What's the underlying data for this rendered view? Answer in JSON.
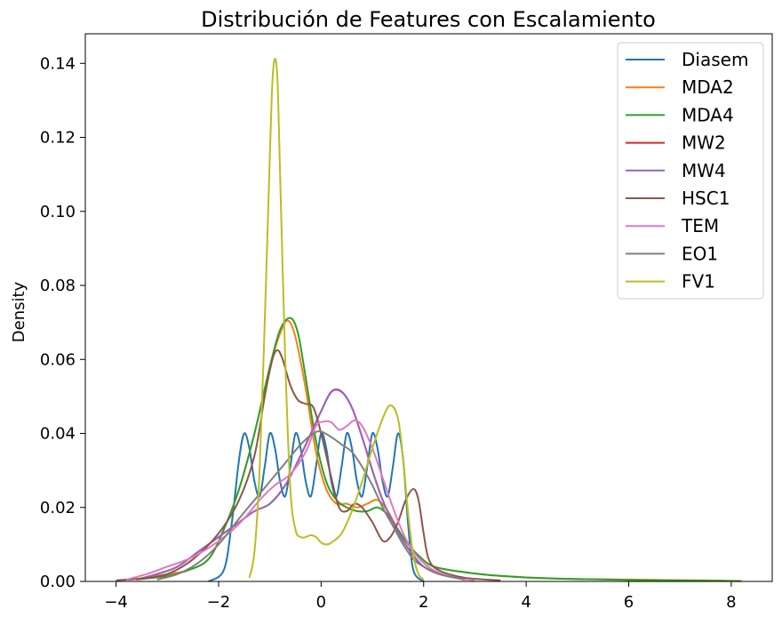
{
  "chart_data": {
    "type": "line",
    "title": "Distribución de Features con Escalamiento",
    "xlabel": "",
    "ylabel": "Density",
    "xlim": [
      -4.6,
      8.8
    ],
    "ylim": [
      0.0,
      0.148
    ],
    "xticks": [
      -4,
      -2,
      0,
      2,
      4,
      6,
      8
    ],
    "xtick_labels": [
      "−4",
      "−2",
      "0",
      "2",
      "4",
      "6",
      "8"
    ],
    "yticks": [
      0.0,
      0.02,
      0.04,
      0.06,
      0.08,
      0.1,
      0.12,
      0.14
    ],
    "ytick_labels": [
      "0.00",
      "0.02",
      "0.04",
      "0.06",
      "0.08",
      "0.10",
      "0.12",
      "0.14"
    ],
    "grid": false,
    "legend_position": "top-right",
    "series": [
      {
        "name": "Diasem",
        "color": "#1f77b4",
        "points": [
          [
            -2.2,
            0
          ],
          [
            -1.9,
            0.003
          ],
          [
            -1.75,
            0.015
          ],
          [
            -1.6,
            0.033
          ],
          [
            -1.5,
            0.04
          ],
          [
            -1.4,
            0.036
          ],
          [
            -1.3,
            0.027
          ],
          [
            -1.2,
            0.023
          ],
          [
            -1.1,
            0.031
          ],
          [
            -1.0,
            0.04
          ],
          [
            -0.9,
            0.036
          ],
          [
            -0.8,
            0.027
          ],
          [
            -0.7,
            0.023
          ],
          [
            -0.6,
            0.031
          ],
          [
            -0.5,
            0.04
          ],
          [
            -0.4,
            0.036
          ],
          [
            -0.3,
            0.027
          ],
          [
            -0.2,
            0.023
          ],
          [
            -0.1,
            0.031
          ],
          [
            0.0,
            0.04
          ],
          [
            0.1,
            0.036
          ],
          [
            0.2,
            0.027
          ],
          [
            0.3,
            0.023
          ],
          [
            0.4,
            0.031
          ],
          [
            0.5,
            0.04
          ],
          [
            0.6,
            0.036
          ],
          [
            0.7,
            0.027
          ],
          [
            0.8,
            0.023
          ],
          [
            0.9,
            0.031
          ],
          [
            1.0,
            0.04
          ],
          [
            1.1,
            0.036
          ],
          [
            1.2,
            0.027
          ],
          [
            1.3,
            0.023
          ],
          [
            1.4,
            0.031
          ],
          [
            1.5,
            0.04
          ],
          [
            1.6,
            0.033
          ],
          [
            1.7,
            0.015
          ],
          [
            1.8,
            0.003
          ],
          [
            2.0,
            0
          ]
        ]
      },
      {
        "name": "MDA2",
        "color": "#ff7f0e",
        "points": [
          [
            -3.6,
            0.0005
          ],
          [
            -3.0,
            0.002
          ],
          [
            -2.6,
            0.003
          ],
          [
            -2.2,
            0.006
          ],
          [
            -1.9,
            0.014
          ],
          [
            -1.6,
            0.025
          ],
          [
            -1.3,
            0.04
          ],
          [
            -1.0,
            0.058
          ],
          [
            -0.8,
            0.067
          ],
          [
            -0.65,
            0.0705
          ],
          [
            -0.5,
            0.066
          ],
          [
            -0.3,
            0.052
          ],
          [
            -0.1,
            0.035
          ],
          [
            0.1,
            0.025
          ],
          [
            0.3,
            0.021
          ],
          [
            0.5,
            0.021
          ],
          [
            0.7,
            0.02
          ],
          [
            0.9,
            0.021
          ],
          [
            1.1,
            0.022
          ],
          [
            1.3,
            0.019
          ],
          [
            1.5,
            0.014
          ],
          [
            1.7,
            0.01
          ],
          [
            1.9,
            0.007
          ],
          [
            2.2,
            0.004
          ],
          [
            2.8,
            0.0025
          ],
          [
            3.5,
            0.0015
          ],
          [
            4.5,
            0.0008
          ],
          [
            6.0,
            0.0005
          ],
          [
            7.5,
            0.0003
          ],
          [
            8.2,
            0.0001
          ]
        ]
      },
      {
        "name": "MDA4",
        "color": "#2ca02c",
        "points": [
          [
            -3.6,
            0.0005
          ],
          [
            -3.0,
            0.0015
          ],
          [
            -2.6,
            0.003
          ],
          [
            -2.2,
            0.006
          ],
          [
            -1.9,
            0.014
          ],
          [
            -1.6,
            0.025
          ],
          [
            -1.3,
            0.04
          ],
          [
            -1.0,
            0.058
          ],
          [
            -0.8,
            0.068
          ],
          [
            -0.6,
            0.0712
          ],
          [
            -0.45,
            0.067
          ],
          [
            -0.3,
            0.055
          ],
          [
            -0.1,
            0.038
          ],
          [
            0.1,
            0.027
          ],
          [
            0.3,
            0.022
          ],
          [
            0.5,
            0.02
          ],
          [
            0.7,
            0.019
          ],
          [
            0.9,
            0.019
          ],
          [
            1.1,
            0.02
          ],
          [
            1.3,
            0.018
          ],
          [
            1.5,
            0.014
          ],
          [
            1.7,
            0.01
          ],
          [
            1.9,
            0.007
          ],
          [
            2.2,
            0.004
          ],
          [
            2.8,
            0.0025
          ],
          [
            3.5,
            0.0015
          ],
          [
            4.5,
            0.0008
          ],
          [
            6.0,
            0.0004
          ],
          [
            8.2,
            0.0001
          ]
        ]
      },
      {
        "name": "MW2",
        "color": "#d62728",
        "points": [
          [
            -3.6,
            0.0005
          ],
          [
            -3.2,
            0.002
          ],
          [
            -2.8,
            0.004
          ],
          [
            -2.4,
            0.008
          ],
          [
            -2.0,
            0.012
          ],
          [
            -1.6,
            0.016
          ],
          [
            -1.3,
            0.019
          ],
          [
            -1.0,
            0.021
          ],
          [
            -0.7,
            0.026
          ],
          [
            -0.4,
            0.034
          ],
          [
            -0.2,
            0.04
          ],
          [
            0.0,
            0.046
          ],
          [
            0.2,
            0.0513
          ],
          [
            0.4,
            0.0513
          ],
          [
            0.6,
            0.047
          ],
          [
            0.8,
            0.039
          ],
          [
            1.0,
            0.03
          ],
          [
            1.2,
            0.022
          ],
          [
            1.4,
            0.016
          ],
          [
            1.6,
            0.011
          ],
          [
            1.8,
            0.007
          ],
          [
            2.0,
            0.004
          ],
          [
            2.3,
            0.002
          ],
          [
            2.8,
            0.0005
          ]
        ]
      },
      {
        "name": "MW4",
        "color": "#9467bd",
        "points": [
          [
            -3.6,
            0.0005
          ],
          [
            -3.2,
            0.002
          ],
          [
            -2.8,
            0.004
          ],
          [
            -2.4,
            0.008
          ],
          [
            -2.0,
            0.012
          ],
          [
            -1.6,
            0.016
          ],
          [
            -1.3,
            0.019
          ],
          [
            -1.0,
            0.021
          ],
          [
            -0.7,
            0.026
          ],
          [
            -0.4,
            0.034
          ],
          [
            -0.2,
            0.04
          ],
          [
            0.0,
            0.046
          ],
          [
            0.2,
            0.0512
          ],
          [
            0.4,
            0.0512
          ],
          [
            0.6,
            0.047
          ],
          [
            0.8,
            0.039
          ],
          [
            1.0,
            0.03
          ],
          [
            1.2,
            0.022
          ],
          [
            1.4,
            0.016
          ],
          [
            1.6,
            0.011
          ],
          [
            1.8,
            0.007
          ],
          [
            2.0,
            0.004
          ],
          [
            2.3,
            0.002
          ],
          [
            2.8,
            0.0005
          ]
        ]
      },
      {
        "name": "HSC1",
        "color": "#8c564b",
        "points": [
          [
            -4.0,
            0.0003
          ],
          [
            -3.5,
            0.0008
          ],
          [
            -3.0,
            0.002
          ],
          [
            -2.5,
            0.006
          ],
          [
            -2.0,
            0.013
          ],
          [
            -1.6,
            0.022
          ],
          [
            -1.3,
            0.034
          ],
          [
            -1.1,
            0.05
          ],
          [
            -0.95,
            0.06
          ],
          [
            -0.85,
            0.0625
          ],
          [
            -0.75,
            0.06
          ],
          [
            -0.6,
            0.053
          ],
          [
            -0.45,
            0.049
          ],
          [
            -0.3,
            0.048
          ],
          [
            -0.15,
            0.047
          ],
          [
            0.0,
            0.04
          ],
          [
            0.2,
            0.028
          ],
          [
            0.35,
            0.02
          ],
          [
            0.5,
            0.019
          ],
          [
            0.65,
            0.021
          ],
          [
            0.8,
            0.02
          ],
          [
            1.0,
            0.016
          ],
          [
            1.2,
            0.011
          ],
          [
            1.35,
            0.012
          ],
          [
            1.5,
            0.016
          ],
          [
            1.65,
            0.022
          ],
          [
            1.8,
            0.025
          ],
          [
            1.9,
            0.022
          ],
          [
            2.0,
            0.013
          ],
          [
            2.1,
            0.006
          ],
          [
            2.3,
            0.003
          ],
          [
            2.8,
            0.001
          ],
          [
            3.5,
            0.0003
          ]
        ]
      },
      {
        "name": "TEM",
        "color": "#e377c2",
        "points": [
          [
            -3.8,
            0.0005
          ],
          [
            -3.4,
            0.002
          ],
          [
            -3.0,
            0.004
          ],
          [
            -2.6,
            0.006
          ],
          [
            -2.2,
            0.009
          ],
          [
            -1.8,
            0.013
          ],
          [
            -1.5,
            0.017
          ],
          [
            -1.2,
            0.022
          ],
          [
            -0.9,
            0.026
          ],
          [
            -0.6,
            0.029
          ],
          [
            -0.3,
            0.035
          ],
          [
            -0.1,
            0.042
          ],
          [
            0.05,
            0.0432
          ],
          [
            0.2,
            0.043
          ],
          [
            0.35,
            0.041
          ],
          [
            0.5,
            0.042
          ],
          [
            0.65,
            0.0435
          ],
          [
            0.8,
            0.042
          ],
          [
            1.0,
            0.036
          ],
          [
            1.2,
            0.028
          ],
          [
            1.4,
            0.02
          ],
          [
            1.6,
            0.013
          ],
          [
            1.8,
            0.008
          ],
          [
            2.0,
            0.005
          ],
          [
            2.2,
            0.003
          ],
          [
            2.6,
            0.001
          ],
          [
            3.0,
            0.0003
          ]
        ]
      },
      {
        "name": "EO1",
        "color": "#7f7f7f",
        "points": [
          [
            -3.2,
            0.0005
          ],
          [
            -2.8,
            0.002
          ],
          [
            -2.4,
            0.005
          ],
          [
            -2.0,
            0.01
          ],
          [
            -1.6,
            0.017
          ],
          [
            -1.3,
            0.022
          ],
          [
            -1.0,
            0.027
          ],
          [
            -0.7,
            0.032
          ],
          [
            -0.4,
            0.037
          ],
          [
            -0.15,
            0.04
          ],
          [
            0.0,
            0.0405
          ],
          [
            0.2,
            0.039
          ],
          [
            0.4,
            0.037
          ],
          [
            0.6,
            0.035
          ],
          [
            0.8,
            0.031
          ],
          [
            1.0,
            0.026
          ],
          [
            1.2,
            0.02
          ],
          [
            1.4,
            0.015
          ],
          [
            1.6,
            0.01
          ],
          [
            1.8,
            0.006
          ],
          [
            2.0,
            0.004
          ],
          [
            2.3,
            0.002
          ],
          [
            2.8,
            0.0005
          ]
        ]
      },
      {
        "name": "FV1",
        "color": "#bcbd22",
        "points": [
          [
            -1.4,
            0.001
          ],
          [
            -1.3,
            0.008
          ],
          [
            -1.2,
            0.03
          ],
          [
            -1.1,
            0.07
          ],
          [
            -1.0,
            0.115
          ],
          [
            -0.95,
            0.135
          ],
          [
            -0.9,
            0.1413
          ],
          [
            -0.85,
            0.135
          ],
          [
            -0.8,
            0.11
          ],
          [
            -0.7,
            0.06
          ],
          [
            -0.6,
            0.025
          ],
          [
            -0.5,
            0.014
          ],
          [
            -0.4,
            0.012
          ],
          [
            -0.3,
            0.012
          ],
          [
            -0.2,
            0.0125
          ],
          [
            -0.1,
            0.012
          ],
          [
            0.0,
            0.0105
          ],
          [
            0.1,
            0.01
          ],
          [
            0.2,
            0.0105
          ],
          [
            0.4,
            0.013
          ],
          [
            0.6,
            0.019
          ],
          [
            0.8,
            0.027
          ],
          [
            1.0,
            0.036
          ],
          [
            1.2,
            0.044
          ],
          [
            1.35,
            0.0476
          ],
          [
            1.5,
            0.044
          ],
          [
            1.6,
            0.033
          ],
          [
            1.7,
            0.018
          ],
          [
            1.8,
            0.007
          ],
          [
            1.9,
            0.002
          ],
          [
            2.0,
            0.0005
          ]
        ]
      }
    ]
  }
}
